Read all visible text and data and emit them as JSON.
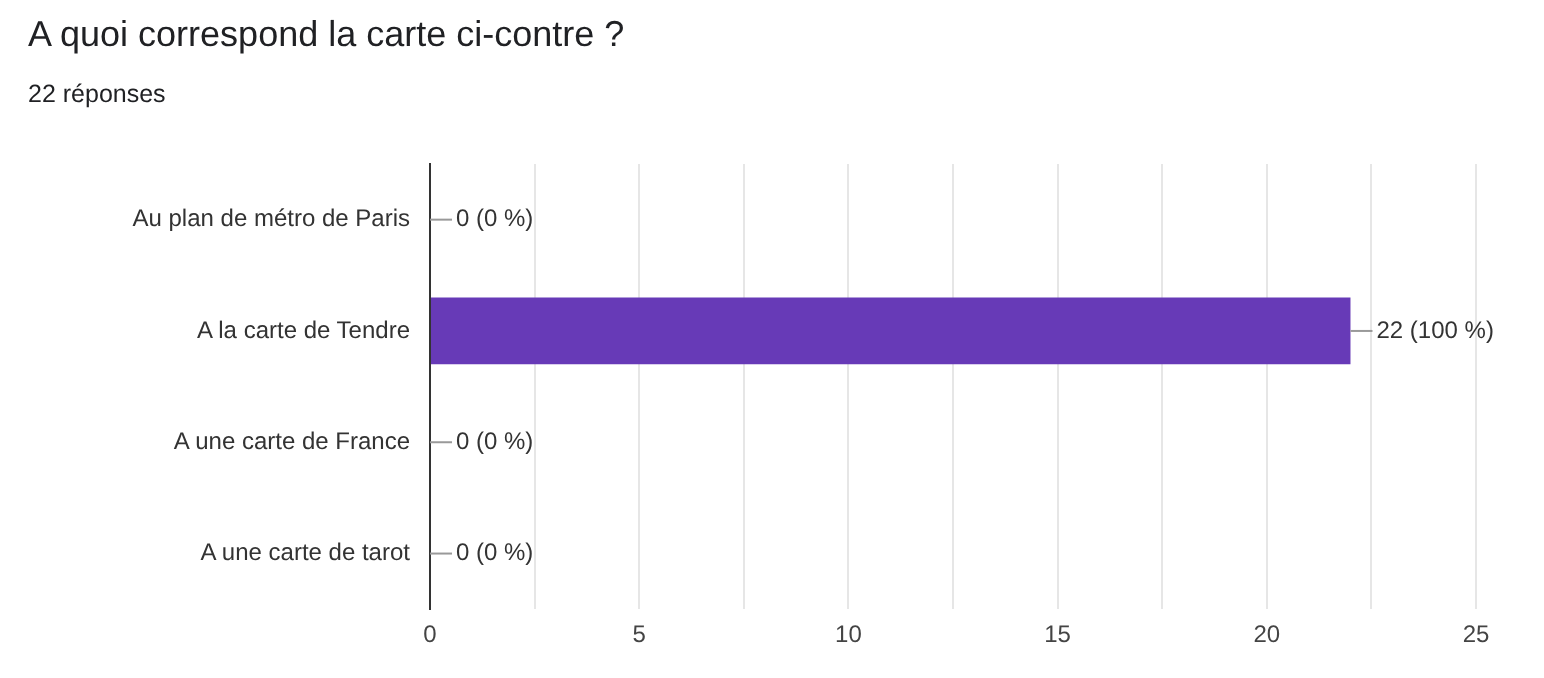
{
  "chart_data": {
    "type": "bar",
    "orientation": "horizontal",
    "title": "A quoi correspond la carte ci-contre ?",
    "subtitle": "22 réponses",
    "categories": [
      "Au plan de métro de Paris",
      "A la carte de Tendre",
      "A une carte de France",
      "A une carte de tarot"
    ],
    "values": [
      0,
      22,
      0,
      0
    ],
    "value_labels": [
      "0 (0 %)",
      "22 (100 %)",
      "0 (0 %)",
      "0 (0 %)"
    ],
    "color": "#673ab7",
    "xlim": [
      0,
      25
    ],
    "xticks": [
      0,
      {
        "value": 2.5,
        "label": null
      },
      5,
      {
        "value": 7.5,
        "label": null
      },
      10,
      {
        "value": 12.5,
        "label": null
      },
      15,
      {
        "value": 17.5,
        "label": null
      },
      20,
      {
        "value": 22.5,
        "label": null
      },
      25
    ],
    "grid": "x",
    "legend": false
  }
}
